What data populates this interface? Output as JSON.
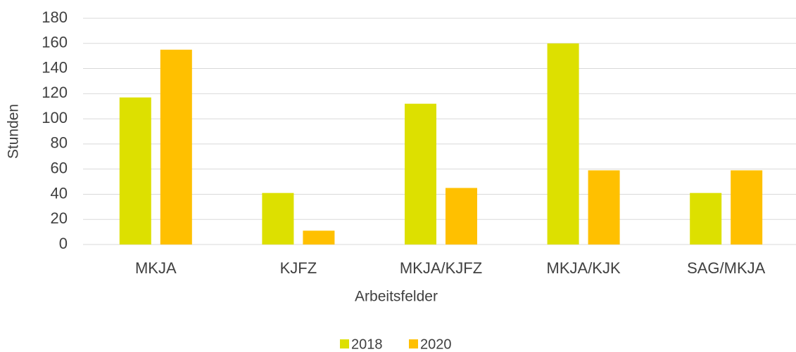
{
  "chart_data": {
    "type": "bar",
    "xlabel": "Arbeitsfelder",
    "ylabel": "Stunden",
    "categories": [
      "MKJA",
      "KJFZ",
      "MKJA/KJFZ",
      "MKJA/KJK",
      "SAG/MKJA"
    ],
    "series": [
      {
        "name": "2018",
        "color": "#dde000",
        "values": [
          117,
          41,
          112,
          160,
          41
        ]
      },
      {
        "name": "2020",
        "color": "#ffc000",
        "values": [
          155,
          11,
          45,
          59,
          59
        ]
      }
    ],
    "ylim": [
      0,
      180
    ],
    "yticks": [
      0,
      20,
      40,
      60,
      80,
      100,
      120,
      140,
      160,
      180
    ],
    "grid": true,
    "legend": "bottom"
  }
}
